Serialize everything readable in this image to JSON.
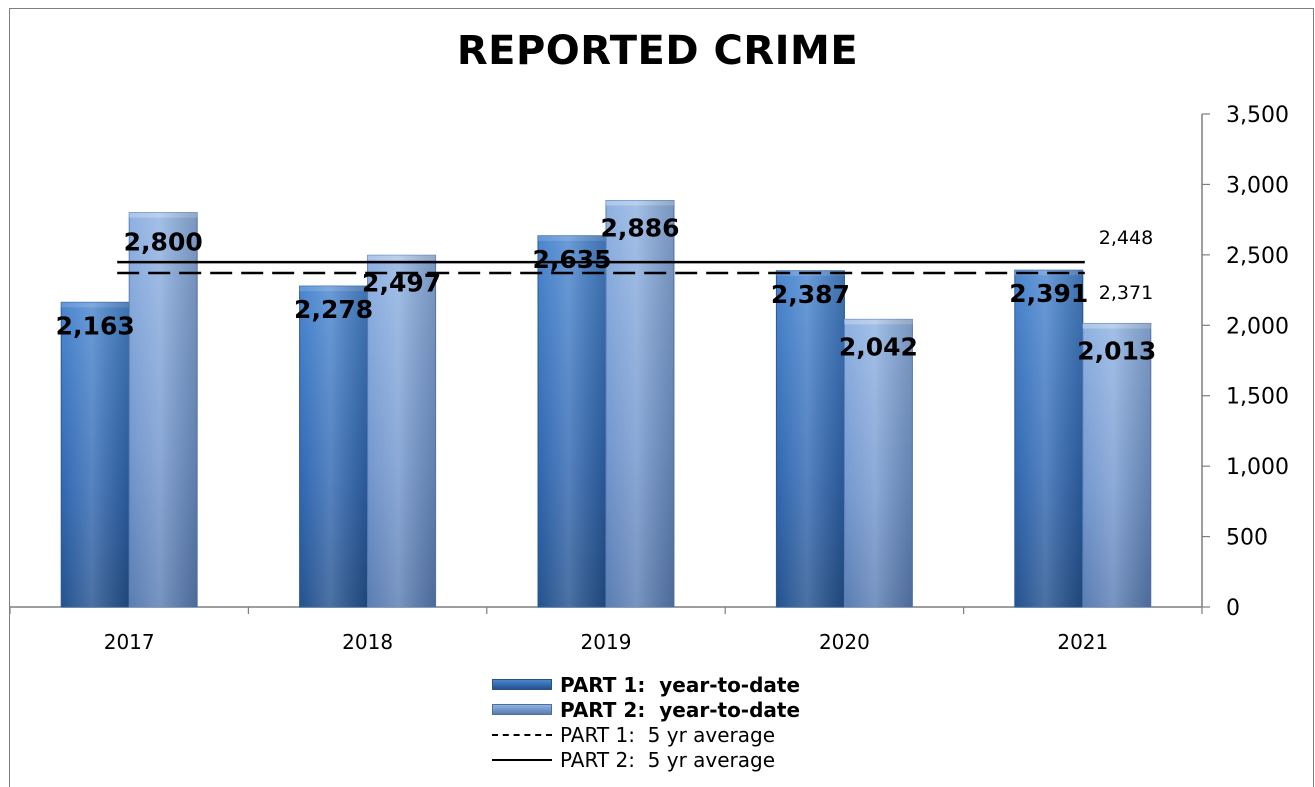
{
  "chart_data": {
    "type": "bar",
    "title": "REPORTED CRIME",
    "categories": [
      "2017",
      "2018",
      "2019",
      "2020",
      "2021"
    ],
    "series": [
      {
        "name": "PART 1:  year-to-date",
        "values": [
          2163,
          2278,
          2635,
          2387,
          2391
        ],
        "color": "#3a73c0"
      },
      {
        "name": "PART 2:  year-to-date",
        "values": [
          2800,
          2497,
          2886,
          2042,
          2013
        ],
        "color": "#7fa3d8"
      }
    ],
    "value_labels": {
      "part1": [
        "2,163",
        "2,278",
        "2,635",
        "2,387",
        "2,391"
      ],
      "part2": [
        "2,800",
        "2,497",
        "2,886",
        "2,042",
        "2,013"
      ]
    },
    "reference_lines": [
      {
        "name": "PART 1:  5 yr average",
        "value": 2371,
        "label": "2,371",
        "style": "dashed"
      },
      {
        "name": "PART 2:  5 yr average",
        "value": 2448,
        "label": "2,448",
        "style": "solid"
      }
    ],
    "y_axis": {
      "position": "right",
      "ylim": [
        0,
        3500
      ],
      "ticks": [
        0,
        500,
        1000,
        1500,
        2000,
        2500,
        3000,
        3500
      ],
      "tick_labels": [
        "0",
        "500",
        "1,000",
        "1,500",
        "2,000",
        "2,500",
        "3,000",
        "3,500"
      ]
    },
    "xlabel": "",
    "ylabel": "",
    "grid": false,
    "legend_position": "bottom"
  }
}
